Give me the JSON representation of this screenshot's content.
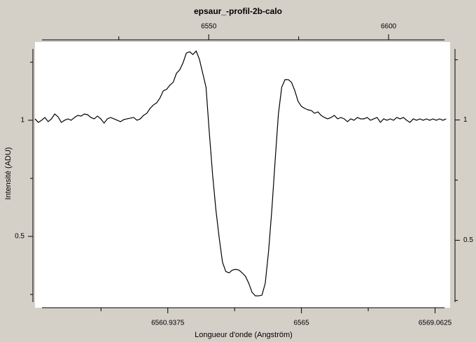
{
  "chart_data": {
    "type": "line",
    "title": "epsaur_-profil-2b-calo",
    "x_label": "Longueur d'onde (Angström)",
    "y_label": "Intensité (ADU)",
    "xlim": [
      6556.9,
      6569.52
    ],
    "xticks": [
      6560.9375,
      6565,
      6569.0625
    ],
    "xminorticks": [
      6558.90625,
      6562.96875,
      6567.03125
    ],
    "x2lim": [
      6501.7,
      6617.1
    ],
    "x2ticks": [
      6550,
      6600
    ],
    "x2minorticks": [
      6525,
      6575
    ],
    "ylim": [
      0.217,
      1.307
    ],
    "yticks": [
      0.5,
      1
    ],
    "yminorticks": [
      0.25,
      0.75,
      1.25
    ],
    "y2lim": [
      0.243,
      1.295
    ],
    "y2ticks": [
      0.5,
      1
    ],
    "y2minorticks": [
      0.25,
      0.75,
      1.25
    ],
    "x": [
      6556.9,
      6557.0,
      6557.1,
      6557.2,
      6557.3,
      6557.4,
      6557.5,
      6557.6,
      6557.7,
      6557.8,
      6557.9,
      6558.0,
      6558.1,
      6558.2,
      6558.3,
      6558.4,
      6558.5,
      6558.6,
      6558.7,
      6558.8,
      6558.9,
      6559.0,
      6559.1,
      6559.2,
      6559.3,
      6559.4,
      6559.5,
      6559.6,
      6559.7,
      6559.8,
      6559.9,
      6560.0,
      6560.1,
      6560.2,
      6560.3,
      6560.4,
      6560.5,
      6560.6,
      6560.7,
      6560.8,
      6560.9,
      6561.0,
      6561.1,
      6561.2,
      6561.3,
      6561.4,
      6561.5,
      6561.6,
      6561.7,
      6561.8,
      6561.9,
      6562.0,
      6562.1,
      6562.2,
      6562.3,
      6562.4,
      6562.5,
      6562.6,
      6562.7,
      6562.8,
      6562.9,
      6563.0,
      6563.1,
      6563.2,
      6563.3,
      6563.4,
      6563.5,
      6563.6,
      6563.7,
      6563.8,
      6563.9,
      6564.0,
      6564.1,
      6564.2,
      6564.3,
      6564.4,
      6564.5,
      6564.6,
      6564.7,
      6564.8,
      6564.9,
      6565.0,
      6565.1,
      6565.2,
      6565.3,
      6565.4,
      6565.5,
      6565.6,
      6565.7,
      6565.8,
      6565.9,
      6566.0,
      6566.1,
      6566.2,
      6566.3,
      6566.4,
      6566.5,
      6566.6,
      6566.7,
      6566.8,
      6566.9,
      6567.0,
      6567.1,
      6567.2,
      6567.3,
      6567.4,
      6567.5,
      6567.6,
      6567.7,
      6567.8,
      6567.9,
      6568.0,
      6568.1,
      6568.2,
      6568.3,
      6568.4,
      6568.5,
      6568.6,
      6568.7,
      6568.8,
      6568.9,
      6569.0,
      6569.1,
      6569.2,
      6569.3,
      6569.4
    ],
    "series": [
      {
        "color": "#000000",
        "values": [
          1.006,
          0.991,
          1.0,
          1.012,
          0.994,
          1.006,
          1.027,
          1.015,
          0.991,
          1.0,
          1.006,
          1.0,
          1.012,
          1.021,
          1.018,
          1.027,
          1.024,
          1.012,
          1.006,
          1.018,
          1.006,
          0.988,
          1.006,
          1.012,
          1.006,
          1.0,
          0.994,
          1.003,
          1.006,
          1.009,
          1.012,
          1.0,
          1.006,
          1.021,
          1.03,
          1.051,
          1.066,
          1.075,
          1.096,
          1.127,
          1.133,
          1.151,
          1.163,
          1.202,
          1.217,
          1.247,
          1.289,
          1.295,
          1.283,
          1.298,
          1.262,
          1.202,
          1.142,
          0.946,
          0.765,
          0.614,
          0.494,
          0.389,
          0.349,
          0.343,
          0.355,
          0.358,
          0.355,
          0.343,
          0.328,
          0.298,
          0.259,
          0.244,
          0.244,
          0.247,
          0.298,
          0.434,
          0.614,
          0.825,
          1.027,
          1.142,
          1.175,
          1.175,
          1.163,
          1.127,
          1.081,
          1.06,
          1.051,
          1.045,
          1.042,
          1.03,
          1.036,
          1.021,
          1.012,
          1.006,
          1.012,
          1.021,
          1.006,
          1.012,
          1.006,
          0.994,
          1.006,
          1.0,
          1.012,
          1.006,
          1.006,
          1.012,
          1.0,
          1.006,
          1.012,
          0.991,
          1.006,
          1.0,
          1.006,
          1.0,
          1.012,
          1.006,
          1.012,
          1.0,
          0.991,
          1.006,
          1.0,
          1.006,
          1.0,
          1.006,
          1.0,
          1.006,
          1.0,
          1.006,
          1.0,
          1.006
        ]
      }
    ]
  }
}
